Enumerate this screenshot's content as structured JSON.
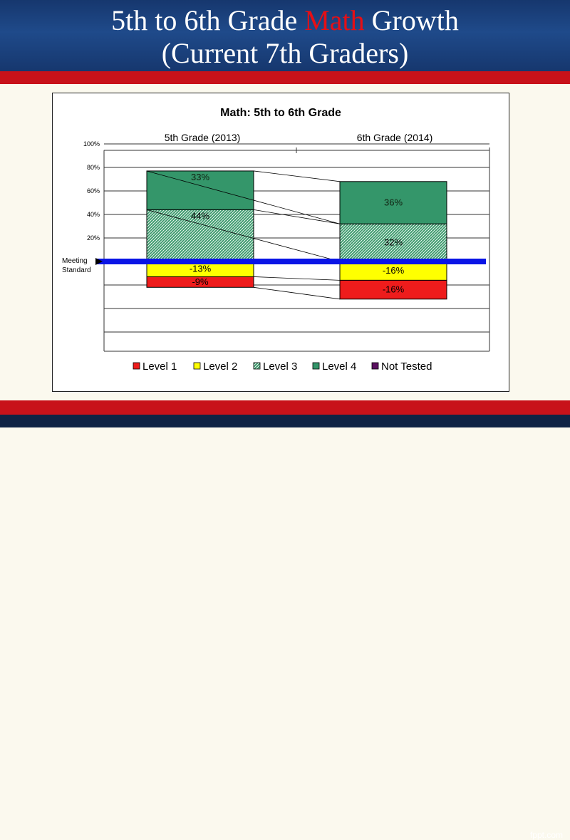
{
  "slide": {
    "title_part1": "5th to 6th Grade ",
    "title_accent": "Math",
    "title_part2": " Growth",
    "title_line2": "(Current 7th Graders)",
    "watermark": "fppt.com"
  },
  "chart_data": {
    "type": "bar",
    "title": "Math: 5th to 6th Grade",
    "categories": [
      "5th Grade (2013)",
      "6th Grade (2014)"
    ],
    "ytick_labels": [
      "100%",
      "80%",
      "60%",
      "40%",
      "20%"
    ],
    "baseline_label": [
      "Meeting",
      "Standard"
    ],
    "ylim": [
      -50,
      100
    ],
    "series": [
      {
        "name": "Level 1",
        "values": [
          -9,
          -16
        ],
        "labels": [
          "-9%",
          "-16%"
        ]
      },
      {
        "name": "Level 2",
        "values": [
          -13,
          -16
        ],
        "labels": [
          "-13%",
          "-16%"
        ]
      },
      {
        "name": "Level 3",
        "values": [
          44,
          32
        ],
        "labels": [
          "44%",
          "32%"
        ]
      },
      {
        "name": "Level 4",
        "values": [
          33,
          36
        ],
        "labels": [
          "33%",
          "36%"
        ]
      },
      {
        "name": "Not Tested",
        "values": [
          0,
          0
        ],
        "labels": [
          "",
          ""
        ]
      }
    ],
    "legend_position": "bottom",
    "colors": {
      "Level 1": "#ee1c1c",
      "Level 2": "#ffff00",
      "Level 3": "#3a9a6a",
      "Level 4": "#34966a",
      "Not Tested": "#5a1060",
      "baseline": "#0a14e6"
    }
  }
}
